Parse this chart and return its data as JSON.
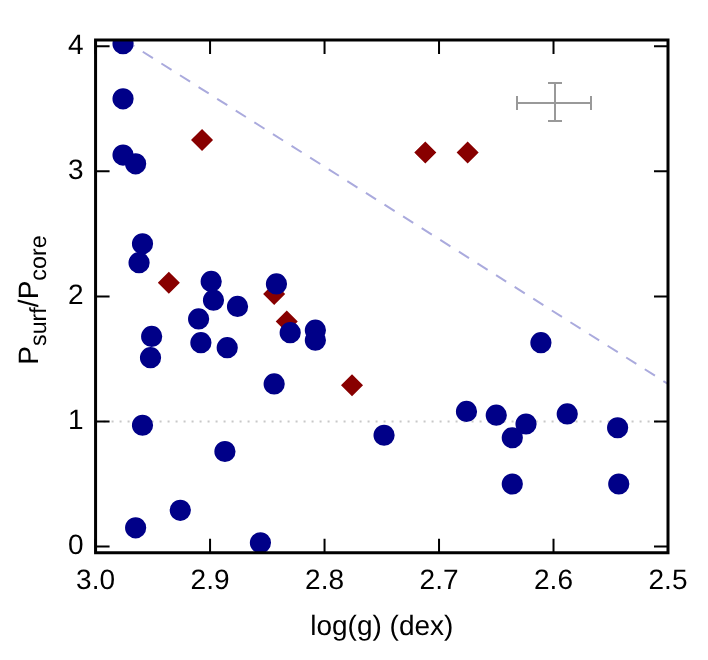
{
  "chart_data": {
    "type": "scatter",
    "xlabel": "log(g) (dex)",
    "ylabel": "P$_{surf}$/P$_{core}$",
    "xlim": [
      3.0,
      2.5
    ],
    "ylim": [
      -0.05,
      4.05
    ],
    "xticks": [
      {
        "value": 3.0,
        "label": "3.0"
      },
      {
        "value": 2.9,
        "label": "2.9"
      },
      {
        "value": 2.8,
        "label": "2.8"
      },
      {
        "value": 2.7,
        "label": "2.7"
      },
      {
        "value": 2.6,
        "label": "2.6"
      },
      {
        "value": 2.5,
        "label": "2.5"
      }
    ],
    "yticks": [
      0,
      1,
      2,
      3,
      4
    ],
    "grid": false,
    "legend": false,
    "ref_lines": [
      {
        "axis": "y",
        "value": 1,
        "color": "#c8c8c8",
        "line_style": "dotted"
      }
    ],
    "series": [
      {
        "type": "scatter",
        "color": "#000088",
        "marker": "circle",
        "x": [
          2.976,
          2.976,
          2.976,
          2.965,
          2.959,
          2.962,
          2.899,
          2.897,
          2.876,
          2.842,
          2.951,
          2.952,
          2.91,
          2.908,
          2.885,
          2.83,
          2.808,
          2.808,
          2.844,
          2.959,
          2.887,
          2.926,
          2.965,
          2.856,
          2.748,
          2.611,
          2.676,
          2.65,
          2.624,
          2.636,
          2.588,
          2.544,
          2.636,
          2.543
        ],
        "values": [
          4.02,
          3.58,
          3.13,
          3.06,
          2.42,
          2.27,
          2.12,
          1.97,
          1.92,
          2.1,
          1.68,
          1.51,
          1.82,
          1.63,
          1.59,
          1.71,
          1.73,
          1.65,
          1.3,
          0.97,
          0.76,
          0.29,
          0.15,
          0.03,
          0.89,
          1.63,
          1.08,
          1.05,
          0.98,
          0.87,
          1.06,
          0.95,
          0.5,
          0.5
        ]
      },
      {
        "type": "scatter",
        "color": "#880000",
        "marker": "diamond",
        "x": [
          2.907,
          2.936,
          2.844,
          2.833,
          2.776,
          2.712,
          2.675
        ],
        "values": [
          3.25,
          2.11,
          2.02,
          1.8,
          1.29,
          3.15,
          3.15
        ]
      },
      {
        "type": "line",
        "color": "#aaaadd",
        "marker": "none",
        "line_style": "dashed",
        "x": [
          2.975,
          2.5
        ],
        "values": [
          4.05,
          1.3
        ]
      }
    ]
  }
}
